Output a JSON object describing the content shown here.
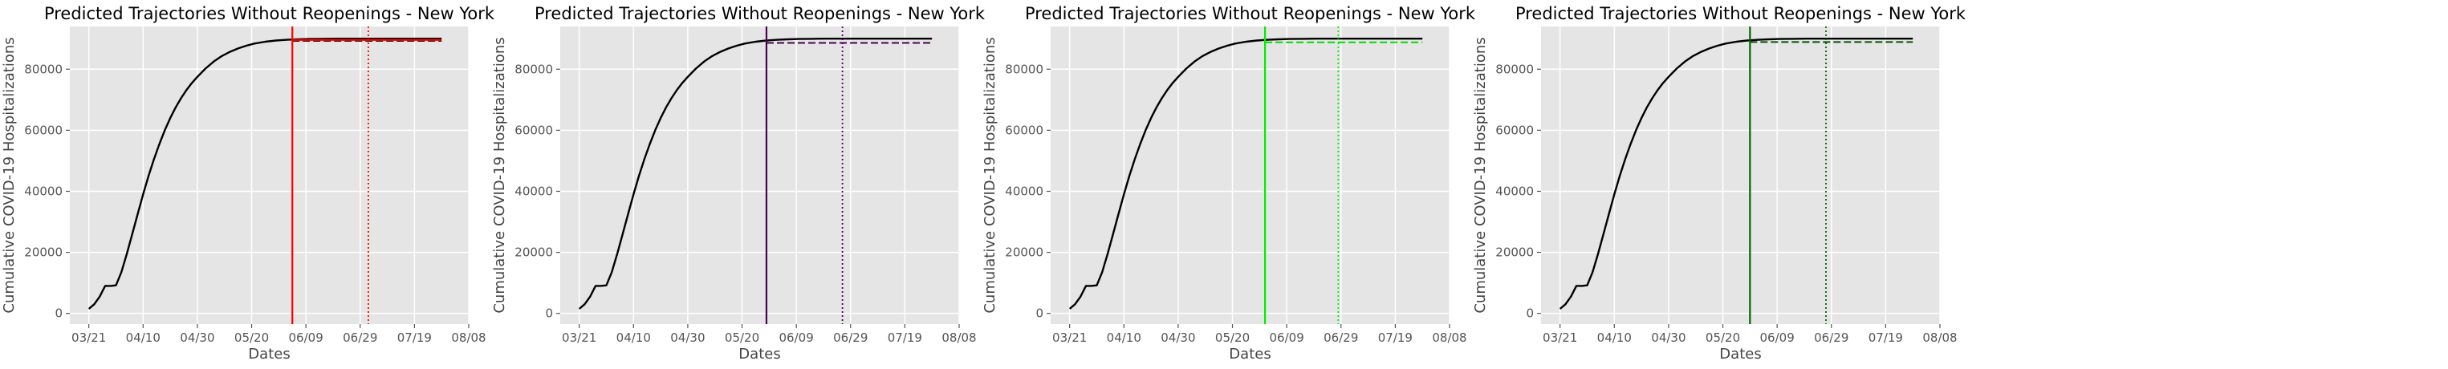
{
  "figure": {
    "background": "#ffffff"
  },
  "style": {
    "plot_background": "#e5e5e5",
    "grid_color": "#ffffff",
    "trajectory_color": "#000000"
  },
  "chart_data": [
    {
      "type": "line",
      "title": "Predicted Trajectories Without Reopenings - New York",
      "xlabel": "Dates",
      "ylabel": "Cumulative COVID-19 Hospitalizations",
      "x_axis": {
        "kind": "date",
        "ticks": [
          "03/21",
          "04/10",
          "04/30",
          "05/20",
          "06/09",
          "06/29",
          "07/19",
          "08/08"
        ]
      },
      "y_axis": {
        "ticks": [
          "0",
          "20000",
          "40000",
          "60000",
          "80000"
        ],
        "ylim": [
          -3500,
          94000
        ]
      },
      "grid": true,
      "xlim": [
        "2020-03-14",
        "2020-08-08"
      ],
      "series": [
        {
          "style": "solid",
          "color": "#000000",
          "x": [
            "2020-03-21",
            "2020-03-23",
            "2020-03-25",
            "2020-03-27",
            "2020-03-29",
            "2020-03-31",
            "2020-04-02",
            "2020-04-04",
            "2020-04-06",
            "2020-04-08",
            "2020-04-10",
            "2020-04-12",
            "2020-04-14",
            "2020-04-16",
            "2020-04-18",
            "2020-04-20",
            "2020-04-22",
            "2020-04-24",
            "2020-04-26",
            "2020-04-28",
            "2020-04-30",
            "2020-05-03",
            "2020-05-06",
            "2020-05-09",
            "2020-05-12",
            "2020-05-15",
            "2020-05-18",
            "2020-05-21",
            "2020-05-25",
            "2020-05-29",
            "2020-06-02",
            "2020-06-06",
            "2020-06-10",
            "2020-06-15",
            "2020-06-20",
            "2020-06-30",
            "2020-07-10",
            "2020-07-20",
            "2020-07-29"
          ],
          "y": [
            1500,
            3000,
            5500,
            9000,
            9000,
            9200,
            13500,
            19500,
            26000,
            32500,
            39000,
            45000,
            50500,
            55500,
            60000,
            64000,
            67500,
            70500,
            73200,
            75500,
            77500,
            80200,
            82500,
            84300,
            85700,
            86800,
            87700,
            88400,
            89000,
            89400,
            89650,
            89800,
            89900,
            89950,
            90000,
            90000,
            90000,
            90000,
            90000
          ]
        },
        {
          "style": "dashed",
          "color": "#000000",
          "x": [
            "2020-06-04",
            "2020-07-29"
          ],
          "y": [
            89300,
            89300
          ]
        }
      ],
      "markers": [
        {
          "style": "solid",
          "color": "#ff0000",
          "x": "2020-06-04"
        },
        {
          "style": "dotted",
          "color": "#ff0000",
          "x": "2020-07-02"
        },
        {
          "style": "solid",
          "color": "#ff0000",
          "x_range": [
            "2020-06-04",
            "2020-07-29"
          ],
          "y": 89600
        }
      ]
    },
    {
      "type": "line",
      "title": "Predicted Trajectories Without Reopenings - New York",
      "xlabel": "Dates",
      "ylabel": "Cumulative COVID-19 Hospitalizations",
      "x_axis": {
        "kind": "date",
        "ticks": [
          "03/21",
          "04/10",
          "04/30",
          "05/20",
          "06/09",
          "06/29",
          "07/19",
          "08/08"
        ]
      },
      "y_axis": {
        "ticks": [
          "0",
          "20000",
          "40000",
          "60000",
          "80000"
        ],
        "ylim": [
          -3500,
          94000
        ]
      },
      "grid": true,
      "xlim": [
        "2020-03-14",
        "2020-08-08"
      ],
      "series": [
        {
          "style": "solid",
          "color": "#000000",
          "x": [
            "2020-03-21",
            "2020-03-23",
            "2020-03-25",
            "2020-03-27",
            "2020-03-29",
            "2020-03-31",
            "2020-04-02",
            "2020-04-04",
            "2020-04-06",
            "2020-04-08",
            "2020-04-10",
            "2020-04-12",
            "2020-04-14",
            "2020-04-16",
            "2020-04-18",
            "2020-04-20",
            "2020-04-22",
            "2020-04-24",
            "2020-04-26",
            "2020-04-28",
            "2020-04-30",
            "2020-05-03",
            "2020-05-06",
            "2020-05-09",
            "2020-05-12",
            "2020-05-15",
            "2020-05-18",
            "2020-05-21",
            "2020-05-25",
            "2020-05-29",
            "2020-06-02",
            "2020-06-06",
            "2020-06-10",
            "2020-06-15",
            "2020-06-20",
            "2020-06-30",
            "2020-07-10",
            "2020-07-20",
            "2020-07-29"
          ],
          "y": [
            1500,
            3000,
            5500,
            9000,
            9000,
            9200,
            13500,
            19500,
            26000,
            32500,
            39000,
            45000,
            50500,
            55500,
            60000,
            64000,
            67500,
            70500,
            73200,
            75500,
            77500,
            80200,
            82500,
            84300,
            85700,
            86800,
            87700,
            88400,
            89000,
            89400,
            89650,
            89800,
            89900,
            89950,
            90000,
            90000,
            90000,
            90000,
            90000
          ]
        },
        {
          "style": "dashed",
          "color": "#4b0055",
          "x": [
            "2020-05-29",
            "2020-07-29"
          ],
          "y": [
            88600,
            88600
          ]
        }
      ],
      "markers": [
        {
          "style": "solid",
          "color": "#4b0055",
          "x": "2020-05-29"
        },
        {
          "style": "dotted",
          "color": "#4b0055",
          "x": "2020-06-26"
        }
      ]
    },
    {
      "type": "line",
      "title": "Predicted Trajectories Without Reopenings - New York",
      "xlabel": "Dates",
      "ylabel": "Cumulative COVID-19 Hospitalizations",
      "x_axis": {
        "kind": "date",
        "ticks": [
          "03/21",
          "04/10",
          "04/30",
          "05/20",
          "06/09",
          "06/29",
          "07/19",
          "08/08"
        ]
      },
      "y_axis": {
        "ticks": [
          "0",
          "20000",
          "40000",
          "60000",
          "80000"
        ],
        "ylim": [
          -3500,
          94000
        ]
      },
      "grid": true,
      "xlim": [
        "2020-03-14",
        "2020-08-08"
      ],
      "series": [
        {
          "style": "solid",
          "color": "#000000",
          "x": [
            "2020-03-21",
            "2020-03-23",
            "2020-03-25",
            "2020-03-27",
            "2020-03-29",
            "2020-03-31",
            "2020-04-02",
            "2020-04-04",
            "2020-04-06",
            "2020-04-08",
            "2020-04-10",
            "2020-04-12",
            "2020-04-14",
            "2020-04-16",
            "2020-04-18",
            "2020-04-20",
            "2020-04-22",
            "2020-04-24",
            "2020-04-26",
            "2020-04-28",
            "2020-04-30",
            "2020-05-03",
            "2020-05-06",
            "2020-05-09",
            "2020-05-12",
            "2020-05-15",
            "2020-05-18",
            "2020-05-21",
            "2020-05-25",
            "2020-05-29",
            "2020-06-02",
            "2020-06-06",
            "2020-06-10",
            "2020-06-15",
            "2020-06-20",
            "2020-06-30",
            "2020-07-10",
            "2020-07-20",
            "2020-07-29"
          ],
          "y": [
            1500,
            3000,
            5500,
            9000,
            9000,
            9200,
            13500,
            19500,
            26000,
            32500,
            39000,
            45000,
            50500,
            55500,
            60000,
            64000,
            67500,
            70500,
            73200,
            75500,
            77500,
            80200,
            82500,
            84300,
            85700,
            86800,
            87700,
            88400,
            89000,
            89400,
            89650,
            89800,
            89900,
            89950,
            90000,
            90000,
            90000,
            90000,
            90000
          ]
        },
        {
          "style": "dashed",
          "color": "#00dd00",
          "x": [
            "2020-06-01",
            "2020-07-29"
          ],
          "y": [
            88800,
            88800
          ]
        }
      ],
      "markers": [
        {
          "style": "solid",
          "color": "#00ee00",
          "x": "2020-06-01"
        },
        {
          "style": "dotted",
          "color": "#00ee00",
          "x": "2020-06-28"
        }
      ]
    },
    {
      "type": "line",
      "title": "Predicted Trajectories Without Reopenings - New York",
      "xlabel": "Dates",
      "ylabel": "Cumulative COVID-19 Hospitalizations",
      "x_axis": {
        "kind": "date",
        "ticks": [
          "03/21",
          "04/10",
          "04/30",
          "05/20",
          "06/09",
          "06/29",
          "07/19",
          "08/08"
        ]
      },
      "y_axis": {
        "ticks": [
          "0",
          "20000",
          "40000",
          "60000",
          "80000"
        ],
        "ylim": [
          -3500,
          94000
        ]
      },
      "grid": true,
      "xlim": [
        "2020-03-14",
        "2020-08-08"
      ],
      "series": [
        {
          "style": "solid",
          "color": "#000000",
          "x": [
            "2020-03-21",
            "2020-03-23",
            "2020-03-25",
            "2020-03-27",
            "2020-03-29",
            "2020-03-31",
            "2020-04-02",
            "2020-04-04",
            "2020-04-06",
            "2020-04-08",
            "2020-04-10",
            "2020-04-12",
            "2020-04-14",
            "2020-04-16",
            "2020-04-18",
            "2020-04-20",
            "2020-04-22",
            "2020-04-24",
            "2020-04-26",
            "2020-04-28",
            "2020-04-30",
            "2020-05-03",
            "2020-05-06",
            "2020-05-09",
            "2020-05-12",
            "2020-05-15",
            "2020-05-18",
            "2020-05-21",
            "2020-05-25",
            "2020-05-29",
            "2020-06-02",
            "2020-06-06",
            "2020-06-10",
            "2020-06-15",
            "2020-06-20",
            "2020-06-30",
            "2020-07-10",
            "2020-07-20",
            "2020-07-29"
          ],
          "y": [
            1500,
            3000,
            5500,
            9000,
            9000,
            9200,
            13500,
            19500,
            26000,
            32500,
            39000,
            45000,
            50500,
            55500,
            60000,
            64000,
            67500,
            70500,
            73200,
            75500,
            77500,
            80200,
            82500,
            84300,
            85700,
            86800,
            87700,
            88400,
            89000,
            89400,
            89650,
            89800,
            89900,
            89950,
            90000,
            90000,
            90000,
            90000,
            90000
          ]
        },
        {
          "style": "dashed",
          "color": "#005500",
          "x": [
            "2020-05-30",
            "2020-07-29"
          ],
          "y": [
            88900,
            88900
          ]
        }
      ],
      "markers": [
        {
          "style": "solid",
          "color": "#006400",
          "x": "2020-05-30"
        },
        {
          "style": "dotted",
          "color": "#006400",
          "x": "2020-06-27"
        }
      ]
    }
  ]
}
